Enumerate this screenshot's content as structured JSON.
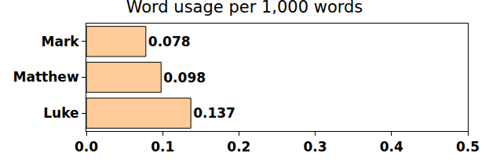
{
  "chart_data": {
    "type": "bar",
    "orientation": "horizontal",
    "title": "Word usage per 1,000 words",
    "categories": [
      "Mark",
      "Matthew",
      "Luke"
    ],
    "values": [
      0.078,
      0.098,
      0.137
    ],
    "color": "#ffcc99",
    "xlim": [
      0,
      0.5
    ],
    "xticks": [
      {
        "value": 0,
        "label": "0.0"
      },
      0.1,
      0.2,
      0.3,
      0.4,
      0.5
    ],
    "grid": false,
    "data_labels": true
  }
}
